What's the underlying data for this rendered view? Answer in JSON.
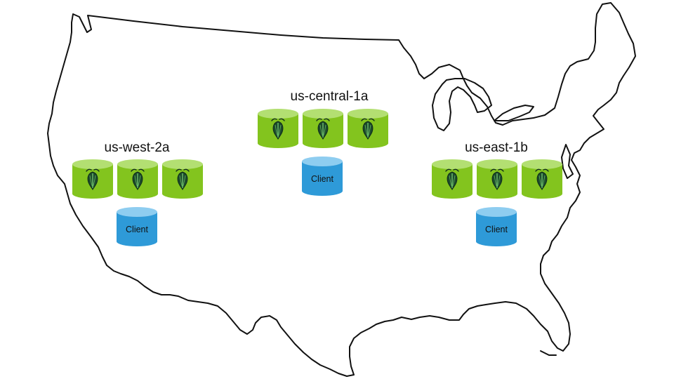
{
  "colors": {
    "node_body": "#83c41e",
    "node_top": "#b3df72",
    "client_body": "#2e9ad8",
    "client_top": "#8ecdf0",
    "map_stroke": "#111111"
  },
  "icons": {
    "node": "cockroach-icon",
    "map": "us-map-outline"
  },
  "regions": [
    {
      "id": "west",
      "label": "us-west-2a",
      "nodes": 3,
      "client_label": "Client"
    },
    {
      "id": "central",
      "label": "us-central-1a",
      "nodes": 3,
      "client_label": "Client"
    },
    {
      "id": "east",
      "label": "us-east-1b",
      "nodes": 3,
      "client_label": "Client"
    }
  ]
}
